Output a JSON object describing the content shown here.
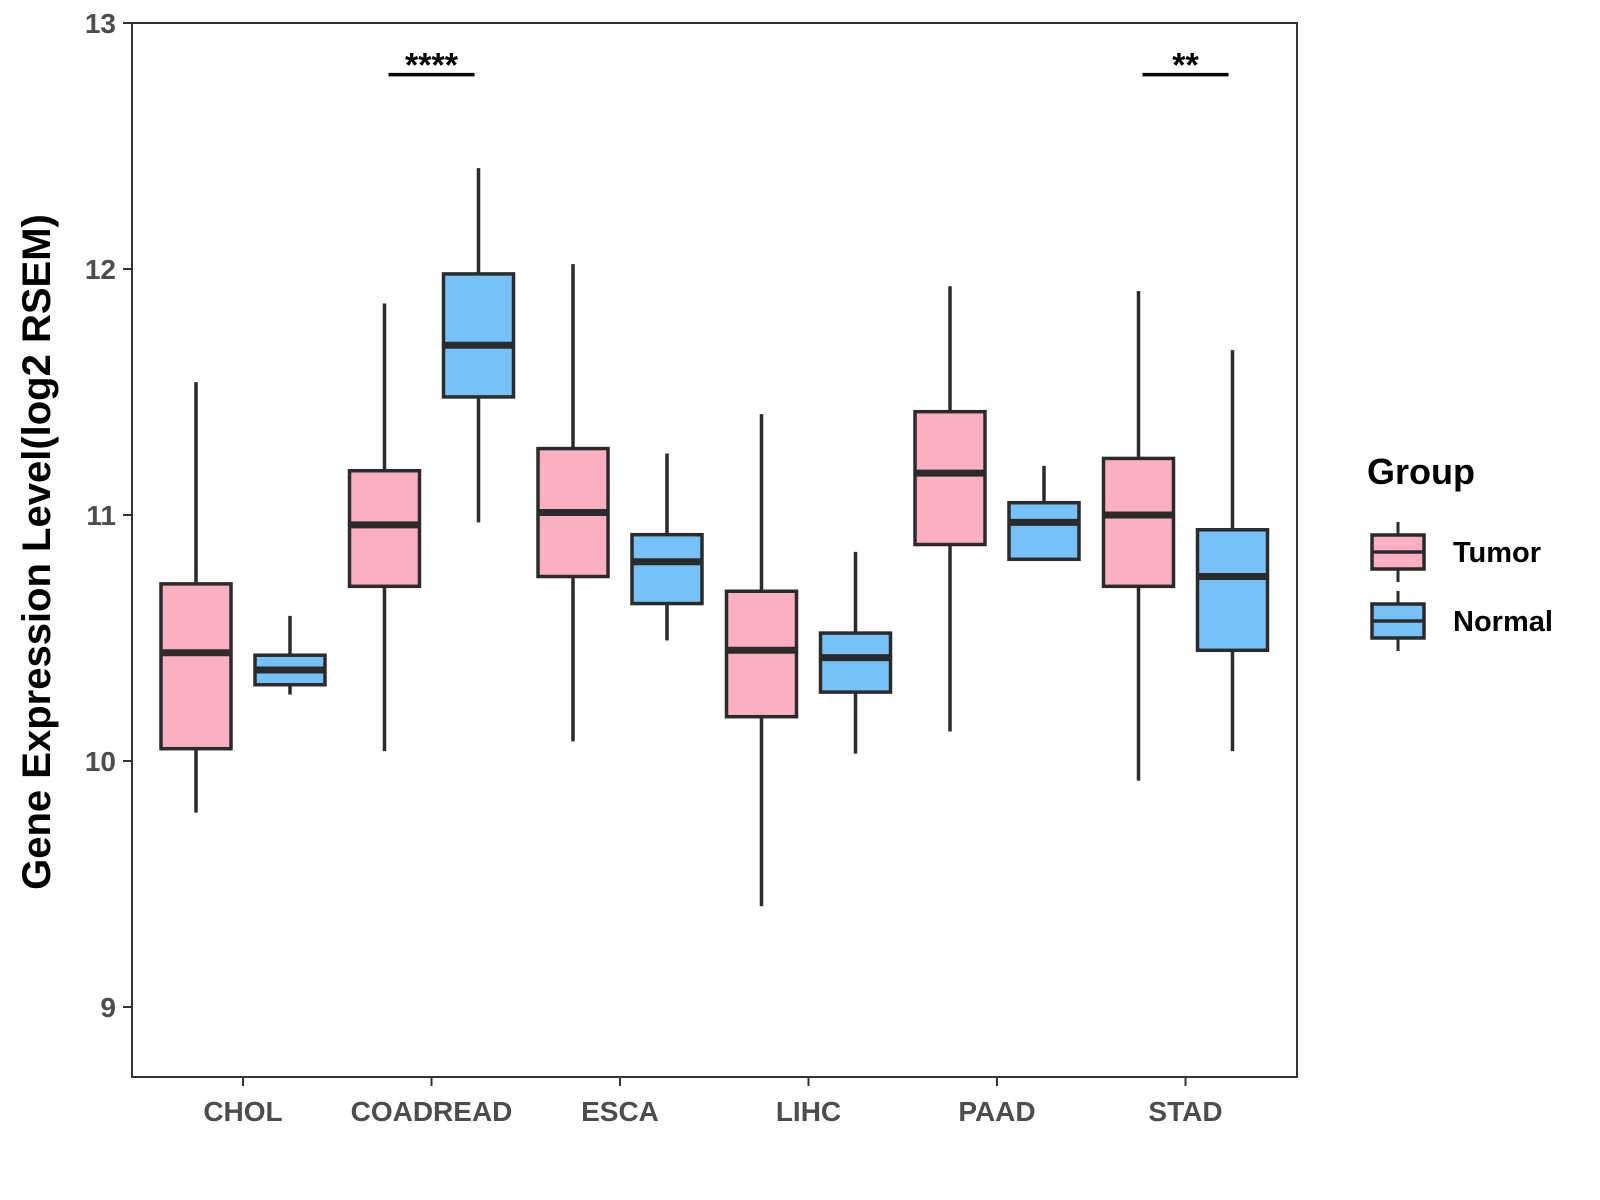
{
  "chart_data": {
    "type": "boxplot",
    "title": "",
    "xlabel": "",
    "ylabel": "Gene Expression Level(log2 RSEM)",
    "ylim": [
      8.72,
      13
    ],
    "yticks": [
      9,
      10,
      11,
      12,
      13
    ],
    "grid": false,
    "categories": [
      "CHOL",
      "COADREAD",
      "ESCA",
      "LIHC",
      "PAAD",
      "STAD"
    ],
    "legend": {
      "title": "Group",
      "position": "right",
      "entries": [
        {
          "name": "Tumor",
          "color": "#FBAFC0"
        },
        {
          "name": "Normal",
          "color": "#75C1F8"
        }
      ]
    },
    "series": [
      {
        "name": "Tumor",
        "color": "#FBAFC0",
        "boxes": [
          {
            "category": "CHOL",
            "lower_whisker": 9.79,
            "q1": 10.05,
            "median": 10.44,
            "q3": 10.72,
            "upper_whisker": 11.54
          },
          {
            "category": "COADREAD",
            "lower_whisker": 10.04,
            "q1": 10.71,
            "median": 10.96,
            "q3": 11.18,
            "upper_whisker": 11.86
          },
          {
            "category": "ESCA",
            "lower_whisker": 10.08,
            "q1": 10.75,
            "median": 11.01,
            "q3": 11.27,
            "upper_whisker": 12.02
          },
          {
            "category": "LIHC",
            "lower_whisker": 9.41,
            "q1": 10.18,
            "median": 10.45,
            "q3": 10.69,
            "upper_whisker": 11.41
          },
          {
            "category": "PAAD",
            "lower_whisker": 10.12,
            "q1": 10.88,
            "median": 11.17,
            "q3": 11.42,
            "upper_whisker": 11.93
          },
          {
            "category": "STAD",
            "lower_whisker": 9.92,
            "q1": 10.71,
            "median": 11.0,
            "q3": 11.23,
            "upper_whisker": 11.91
          }
        ]
      },
      {
        "name": "Normal",
        "color": "#75C1F8",
        "boxes": [
          {
            "category": "CHOL",
            "lower_whisker": 10.27,
            "q1": 10.31,
            "median": 10.37,
            "q3": 10.43,
            "upper_whisker": 10.59
          },
          {
            "category": "COADREAD",
            "lower_whisker": 10.97,
            "q1": 11.48,
            "median": 11.69,
            "q3": 11.98,
            "upper_whisker": 12.41
          },
          {
            "category": "ESCA",
            "lower_whisker": 10.49,
            "q1": 10.64,
            "median": 10.81,
            "q3": 10.92,
            "upper_whisker": 11.25
          },
          {
            "category": "LIHC",
            "lower_whisker": 10.03,
            "q1": 10.28,
            "median": 10.42,
            "q3": 10.52,
            "upper_whisker": 10.85
          },
          {
            "category": "PAAD",
            "lower_whisker": 10.82,
            "q1": 10.82,
            "median": 10.97,
            "q3": 11.05,
            "upper_whisker": 11.2
          },
          {
            "category": "STAD",
            "lower_whisker": 10.04,
            "q1": 10.45,
            "median": 10.75,
            "q3": 10.94,
            "upper_whisker": 11.67
          }
        ]
      }
    ],
    "significance": [
      {
        "category": "COADREAD",
        "label": "****",
        "y": 12.79
      },
      {
        "category": "STAD",
        "label": "**",
        "y": 12.79
      }
    ]
  }
}
